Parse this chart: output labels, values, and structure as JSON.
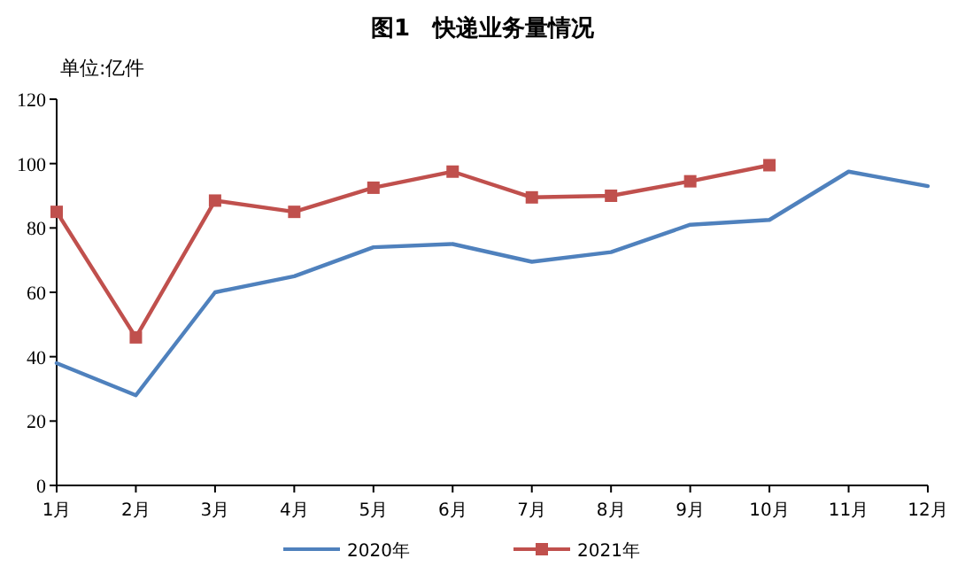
{
  "chart_data": {
    "type": "line",
    "title": "图1　快递业务量情况",
    "annotations": [
      "单位:亿件"
    ],
    "categories": [
      "1月",
      "2月",
      "3月",
      "4月",
      "5月",
      "6月",
      "7月",
      "8月",
      "9月",
      "10月",
      "11月",
      "12月"
    ],
    "series": [
      {
        "name": "2020年",
        "color": "#4f81bd",
        "marker": "none",
        "values": [
          38,
          28,
          60,
          65,
          74,
          75,
          69.5,
          72.5,
          81,
          82.5,
          97.5,
          93
        ]
      },
      {
        "name": "2021年",
        "color": "#c0504d",
        "marker": "square",
        "values": [
          85,
          46,
          88.5,
          85,
          92.5,
          97.5,
          89.5,
          90,
          94.5,
          99.5,
          null,
          null
        ]
      }
    ],
    "ylim": [
      0,
      120
    ],
    "yticks": [
      0,
      20,
      40,
      60,
      80,
      100,
      120
    ],
    "grid": false,
    "legend": "bottom",
    "line_style": "solid"
  }
}
